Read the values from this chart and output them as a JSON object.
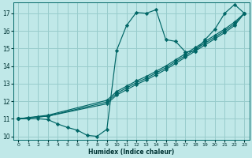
{
  "background_color": "#c0e8e8",
  "grid_color": "#98cccc",
  "line_color": "#006666",
  "marker_color": "#006666",
  "xlabel": "Humidex (Indice chaleur)",
  "xlim": [
    -0.5,
    23.5
  ],
  "ylim": [
    9.8,
    17.6
  ],
  "yticks": [
    10,
    11,
    12,
    13,
    14,
    15,
    16,
    17
  ],
  "xticks": [
    0,
    1,
    2,
    3,
    4,
    5,
    6,
    7,
    8,
    9,
    10,
    11,
    12,
    13,
    14,
    15,
    16,
    17,
    18,
    19,
    20,
    21,
    22,
    23
  ],
  "lines": [
    {
      "x": [
        0,
        1,
        2,
        3,
        4,
        5,
        6,
        7,
        8,
        9,
        10,
        11,
        12,
        13,
        14,
        15,
        16,
        17,
        18,
        19,
        20,
        21,
        22,
        23
      ],
      "y": [
        11.0,
        11.0,
        11.0,
        10.95,
        10.7,
        10.5,
        10.35,
        10.05,
        10.0,
        10.4,
        14.9,
        16.3,
        17.05,
        17.0,
        17.2,
        15.5,
        15.4,
        14.8,
        14.85,
        15.5,
        16.1,
        17.0,
        17.5,
        17.0
      ]
    },
    {
      "x": [
        0,
        1,
        2,
        3,
        9,
        10,
        11,
        12,
        13,
        14,
        15,
        16,
        17,
        18,
        19,
        20,
        21,
        22,
        23
      ],
      "y": [
        11.0,
        11.05,
        11.1,
        11.15,
        11.85,
        12.35,
        12.65,
        12.95,
        13.2,
        13.5,
        13.8,
        14.15,
        14.5,
        14.85,
        15.2,
        15.55,
        15.9,
        16.3,
        17.0
      ]
    },
    {
      "x": [
        0,
        3,
        9,
        10,
        11,
        12,
        13,
        14,
        15,
        16,
        17,
        18,
        19,
        20,
        21,
        22,
        23
      ],
      "y": [
        11.0,
        11.15,
        11.95,
        12.45,
        12.75,
        13.05,
        13.3,
        13.6,
        13.9,
        14.25,
        14.6,
        14.95,
        15.3,
        15.65,
        16.0,
        16.4,
        17.0
      ]
    },
    {
      "x": [
        0,
        3,
        9,
        10,
        11,
        12,
        13,
        14,
        15,
        16,
        17,
        18,
        19,
        20,
        21,
        22,
        23
      ],
      "y": [
        11.0,
        11.2,
        12.05,
        12.55,
        12.85,
        13.15,
        13.4,
        13.7,
        14.0,
        14.35,
        14.7,
        15.05,
        15.4,
        15.75,
        16.1,
        16.5,
        17.0
      ]
    }
  ]
}
